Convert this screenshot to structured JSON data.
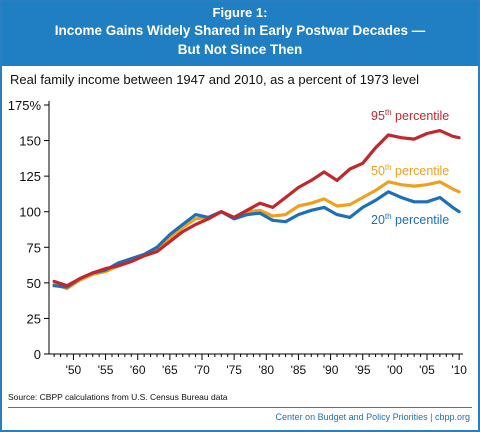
{
  "figure": {
    "number_label": "Figure 1:",
    "title_line1": "Income Gains Widely Shared in Early Postwar Decades —",
    "title_line2": "But Not Since Then",
    "subtitle": "Real family income between 1947 and 2010, as a percent of 1973 level",
    "source": "Source: CBPP calculations from U.S. Census Bureau data",
    "credit": "Center on Budget and Policy Priorities | cbpp.org"
  },
  "colors": {
    "banner": "#1f7fc2",
    "p95": "#c0282e",
    "p50": "#f0a020",
    "p20": "#1d6fb8",
    "axis": "#000000"
  },
  "chart_data": {
    "type": "line",
    "xlim": [
      1947,
      2010
    ],
    "ylim": [
      0,
      175
    ],
    "y_ticks": [
      0,
      25,
      50,
      75,
      100,
      125,
      150,
      175
    ],
    "y_tick_labels": [
      "0",
      "25",
      "50",
      "75",
      "100",
      "125",
      "150",
      "175%"
    ],
    "x_ticks": [
      1950,
      1955,
      1960,
      1965,
      1970,
      1975,
      1980,
      1985,
      1990,
      1995,
      2000,
      2005,
      2010
    ],
    "x_tick_labels": [
      "'50",
      "'55",
      "'60",
      "'65",
      "'70",
      "'75",
      "'80",
      "'85",
      "'90",
      "'95",
      "'00",
      "'05",
      "'10"
    ],
    "x": [
      1947,
      1949,
      1951,
      1953,
      1955,
      1957,
      1959,
      1961,
      1963,
      1965,
      1967,
      1969,
      1971,
      1973,
      1975,
      1977,
      1979,
      1981,
      1983,
      1985,
      1987,
      1989,
      1991,
      1993,
      1995,
      1997,
      1999,
      2001,
      2003,
      2005,
      2007,
      2009,
      2010
    ],
    "series": [
      {
        "name": "95th percentile",
        "label_main": "95",
        "label_sup": "th",
        "label_rest": " percentile",
        "color_key": "p95",
        "values": [
          51,
          48,
          53,
          57,
          60,
          62,
          65,
          69,
          72,
          79,
          86,
          91,
          95,
          100,
          96,
          101,
          106,
          103,
          110,
          117,
          122,
          128,
          122,
          130,
          134,
          145,
          154,
          152,
          151,
          155,
          157,
          153,
          152
        ]
      },
      {
        "name": "50th percentile",
        "label_main": "50",
        "label_sup": "th",
        "label_rest": " percentile",
        "color_key": "p50",
        "values": [
          49,
          46,
          52,
          56,
          58,
          62,
          65,
          69,
          73,
          81,
          89,
          95,
          96,
          100,
          96,
          100,
          101,
          97,
          98,
          104,
          106,
          109,
          104,
          105,
          110,
          115,
          121,
          119,
          118,
          119,
          121,
          116,
          114
        ]
      },
      {
        "name": "20th percentile",
        "label_main": "20",
        "label_sup": "th",
        "label_rest": " percentile",
        "color_key": "p20",
        "values": [
          48,
          47,
          53,
          57,
          59,
          64,
          67,
          70,
          75,
          84,
          91,
          98,
          96,
          100,
          95,
          98,
          99,
          94,
          93,
          98,
          101,
          103,
          98,
          96,
          103,
          108,
          114,
          110,
          107,
          107,
          110,
          103,
          100
        ]
      }
    ]
  }
}
